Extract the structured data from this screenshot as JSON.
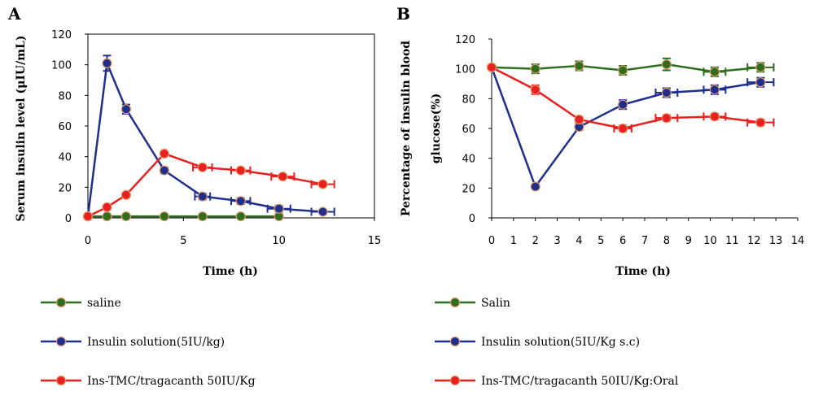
{
  "chart_data": [
    {
      "type": "line",
      "panel": "A",
      "xlabel": "Time (h)",
      "ylabel": "Serum insulin level (μIU/mL)",
      "xlim": [
        0,
        15
      ],
      "ylim": [
        0,
        120
      ],
      "xticks": [
        0,
        5,
        10,
        15
      ],
      "yticks": [
        0,
        20,
        40,
        60,
        80,
        100,
        120
      ],
      "grid": false,
      "legend": "below",
      "series": [
        {
          "name": "saline",
          "color": "#2e6e1e",
          "marker": "#2e6e1e",
          "x": [
            0,
            1,
            2,
            4,
            6,
            8,
            10
          ],
          "y": [
            1,
            1,
            1,
            1,
            1,
            1,
            1
          ],
          "xerr": [
            0,
            0,
            0,
            0,
            0,
            0,
            0
          ],
          "yerr": [
            0,
            0,
            0,
            0,
            0,
            0,
            0
          ]
        },
        {
          "name": "Insulin solution(5IU/kg)",
          "color": "#1f2f8c",
          "marker": "#1f2f8c",
          "x": [
            0,
            1,
            2,
            4,
            6,
            8,
            10,
            12.3
          ],
          "y": [
            1,
            101,
            71,
            31,
            14,
            11,
            6,
            4
          ],
          "xerr": [
            0,
            0,
            0,
            0,
            0.4,
            0.5,
            0.6,
            0.6
          ],
          "yerr": [
            0,
            5,
            3,
            2,
            2,
            2,
            2,
            1
          ]
        },
        {
          "name": "Ins-TMC/tragacanth 50IU/Kg",
          "color": "#e8201f",
          "marker": "#e8201f",
          "x": [
            0,
            1,
            2,
            4,
            6,
            8,
            10.2,
            12.3
          ],
          "y": [
            1,
            7,
            15,
            42,
            33,
            31,
            27,
            22
          ],
          "xerr": [
            0,
            0,
            0,
            0,
            0.5,
            0.5,
            0.6,
            0.6
          ],
          "yerr": [
            0,
            0,
            0,
            1,
            1,
            1,
            1,
            1
          ]
        }
      ]
    },
    {
      "type": "line",
      "panel": "B",
      "xlabel": "Time (h)",
      "ylabel_line1": "Percentage of insulin blood",
      "ylabel_line2": "glucose(%)",
      "xlim": [
        0,
        14
      ],
      "ylim": [
        0,
        120
      ],
      "xticks": [
        0,
        1,
        2,
        3,
        4,
        5,
        6,
        7,
        8,
        9,
        10,
        11,
        12,
        13,
        14
      ],
      "yticks": [
        0,
        20,
        40,
        60,
        80,
        100,
        120
      ],
      "grid": false,
      "legend": "below",
      "series": [
        {
          "name": "Salin",
          "color": "#2e6e1e",
          "marker": "#2e6e1e",
          "x": [
            0,
            2,
            4,
            6,
            8,
            10.2,
            12.3
          ],
          "y": [
            101,
            100,
            102,
            99,
            103,
            98,
            101
          ],
          "xerr": [
            0,
            0,
            0,
            0,
            0,
            0.5,
            0.6
          ],
          "yerr": [
            0,
            3,
            3,
            3,
            4,
            3,
            3
          ]
        },
        {
          "name": "Insulin solution(5IU/Kg s.c)",
          "color": "#1f2f8c",
          "marker": "#1f2f8c",
          "x": [
            0,
            2,
            4,
            6,
            8,
            10.2,
            12.3
          ],
          "y": [
            101,
            21,
            61,
            76,
            84,
            86,
            91
          ],
          "xerr": [
            0,
            0,
            0,
            0,
            0.5,
            0.5,
            0.6
          ],
          "yerr": [
            0,
            0,
            2,
            3,
            3,
            3,
            3
          ]
        },
        {
          "name": "Ins-TMC/tragacanth 50IU/Kg:Oral",
          "color": "#e8201f",
          "marker": "#e8201f",
          "x": [
            0,
            2,
            4,
            6,
            8,
            10.2,
            12.3
          ],
          "y": [
            101,
            86,
            66,
            60,
            67,
            68,
            64
          ],
          "xerr": [
            0,
            0,
            0,
            0.4,
            0.5,
            0.5,
            0.6
          ],
          "yerr": [
            0,
            3,
            2,
            2,
            2,
            2,
            2
          ]
        }
      ]
    }
  ]
}
